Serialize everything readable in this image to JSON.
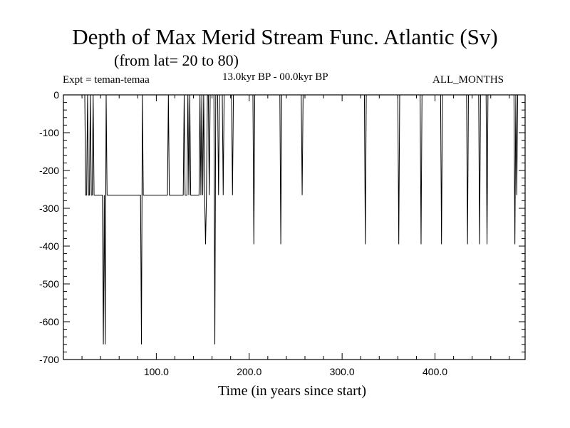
{
  "chart_data": {
    "type": "line",
    "title": "Depth of Max Merid Stream Func. Atlantic (Sv)",
    "subtitle": "(from lat= 20 to 80)",
    "expt_label": "Expt = teman-temaa",
    "period_label": "13.0kyr BP - 00.0kyr BP",
    "months_label": "ALL_MONTHS",
    "xlabel": "Time (in years since start)",
    "ylabel": "",
    "xlim": [
      0,
      497
    ],
    "ylim": [
      -700,
      0
    ],
    "x_ticks": [
      100,
      200,
      300,
      400
    ],
    "x_tick_labels": [
      "100.0",
      "200.0",
      "300.0",
      "400.0"
    ],
    "y_ticks": [
      0,
      -100,
      -200,
      -300,
      -400,
      -500,
      -600,
      -700
    ],
    "y_tick_labels": [
      "0",
      "-100",
      "-200",
      "-300",
      "-400",
      "-500",
      "-600",
      "-700"
    ],
    "grid": false,
    "series": [
      {
        "values": [
          [
            0,
            0
          ],
          [
            23,
            0
          ],
          [
            24,
            -265
          ],
          [
            25,
            -265
          ],
          [
            26,
            0
          ],
          [
            27,
            -265
          ],
          [
            28,
            -265
          ],
          [
            29,
            0
          ],
          [
            30,
            -265
          ],
          [
            31,
            -265
          ],
          [
            32,
            0
          ],
          [
            33,
            -265
          ],
          [
            42,
            -265
          ],
          [
            43,
            -660
          ],
          [
            44,
            -265
          ],
          [
            45,
            -660
          ],
          [
            46,
            0
          ],
          [
            47,
            -265
          ],
          [
            83,
            -265
          ],
          [
            84,
            -660
          ],
          [
            85,
            0
          ],
          [
            86,
            -265
          ],
          [
            112,
            -265
          ],
          [
            113,
            0
          ],
          [
            114,
            -265
          ],
          [
            129,
            -265
          ],
          [
            130,
            0
          ],
          [
            131,
            -265
          ],
          [
            133,
            -265
          ],
          [
            134,
            0
          ],
          [
            135,
            -265
          ],
          [
            136,
            0
          ],
          [
            137,
            -265
          ],
          [
            146,
            -265
          ],
          [
            147,
            0
          ],
          [
            148,
            -265
          ],
          [
            149,
            0
          ],
          [
            150,
            -265
          ],
          [
            151,
            0
          ],
          [
            152,
            -265
          ],
          [
            153,
            -395
          ],
          [
            154,
            -265
          ],
          [
            155,
            0
          ],
          [
            156,
            0
          ],
          [
            157,
            -265
          ],
          [
            158,
            0
          ],
          [
            162,
            0
          ],
          [
            163,
            -660
          ],
          [
            164,
            0
          ],
          [
            166,
            0
          ],
          [
            167,
            -265
          ],
          [
            168,
            0
          ],
          [
            171,
            0
          ],
          [
            172,
            -265
          ],
          [
            173,
            0
          ],
          [
            181,
            0
          ],
          [
            182,
            -265
          ],
          [
            183,
            0
          ],
          [
            204,
            0
          ],
          [
            205,
            -395
          ],
          [
            206,
            0
          ],
          [
            233,
            0
          ],
          [
            234,
            -395
          ],
          [
            235,
            0
          ],
          [
            256,
            0
          ],
          [
            257,
            -265
          ],
          [
            258,
            0
          ],
          [
            324,
            0
          ],
          [
            325,
            -395
          ],
          [
            326,
            0
          ],
          [
            360,
            0
          ],
          [
            361,
            -395
          ],
          [
            362,
            0
          ],
          [
            384,
            0
          ],
          [
            385,
            -395
          ],
          [
            386,
            0
          ],
          [
            406,
            0
          ],
          [
            407,
            -395
          ],
          [
            408,
            0
          ],
          [
            434,
            0
          ],
          [
            435,
            -395
          ],
          [
            436,
            0
          ],
          [
            447,
            0
          ],
          [
            448,
            -395
          ],
          [
            449,
            0
          ],
          [
            455,
            0
          ],
          [
            456,
            -395
          ],
          [
            457,
            0
          ],
          [
            485,
            0
          ],
          [
            486,
            -395
          ],
          [
            487,
            0
          ],
          [
            488,
            -265
          ],
          [
            489,
            0
          ],
          [
            497,
            0
          ]
        ]
      }
    ]
  }
}
